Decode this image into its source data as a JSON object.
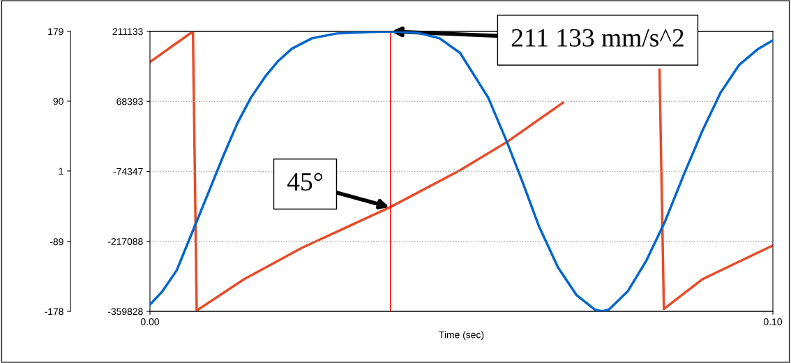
{
  "chart_data": {
    "type": "line",
    "xlabel": "Time (sec)",
    "xlim": [
      0,
      0.1
    ],
    "xticks": [
      {
        "value": 0,
        "label": "0.00"
      },
      {
        "value": 0.1,
        "label": "0.10"
      }
    ],
    "ylim": [
      -359828,
      211133
    ],
    "yticks": [
      -359828,
      -217088,
      -74347,
      68393,
      211133
    ],
    "y2lim": [
      -178,
      179
    ],
    "y2ticks": [
      -178,
      -89,
      1,
      90,
      179
    ],
    "grid": "y",
    "legend": false,
    "line_style": "solid",
    "marker": "none",
    "series": [
      {
        "color": "#0066cc",
        "axis": "y",
        "x": [
          0,
          0.002,
          0.0043,
          0.0069,
          0.0095,
          0.0118,
          0.014,
          0.0162,
          0.0185,
          0.0206,
          0.0228,
          0.026,
          0.03,
          0.0356,
          0.0386,
          0.0431,
          0.0465,
          0.0498,
          0.0543,
          0.0573,
          0.0599,
          0.0624,
          0.0655,
          0.0685,
          0.0714,
          0.0726,
          0.0737,
          0.0767,
          0.0797,
          0.0827,
          0.0857,
          0.0887,
          0.0916,
          0.0946,
          0.0977,
          0.1
        ],
        "values": [
          -346000,
          -319000,
          -276000,
          -195000,
          -114000,
          -42000,
          23000,
          76000,
          119000,
          151000,
          176000,
          197000,
          207000,
          210000,
          211133,
          208000,
          197000,
          167000,
          76000,
          -14000,
          -99000,
          -185000,
          -270000,
          -327000,
          -356000,
          -359828,
          -356000,
          -319000,
          -256000,
          -176000,
          -81000,
          9000,
          86000,
          143000,
          176000,
          193000
        ]
      },
      {
        "color": "#e84a27",
        "axis": "y2",
        "x": [
          0,
          0.0069,
          0.0075,
          0.0151,
          0.0244,
          0.0386,
          0.0498,
          0.0573,
          0.0663,
          0.0745,
          0.0818,
          0.0825,
          0.0887,
          0.1
        ],
        "values": [
          140,
          179,
          -177,
          -137,
          -97,
          -45,
          2,
          38,
          88,
          null,
          130,
          -175,
          -137,
          -94
        ]
      }
    ],
    "ref_lines": [
      {
        "axis": "x",
        "value": 0.0386,
        "color": "#ff0000"
      }
    ],
    "annotations": [
      {
        "text": "211 133 mm/s^2",
        "x": 0.0386,
        "y": 211133
      },
      {
        "text": "45°",
        "x": 0.0386,
        "y": -147700
      }
    ]
  }
}
